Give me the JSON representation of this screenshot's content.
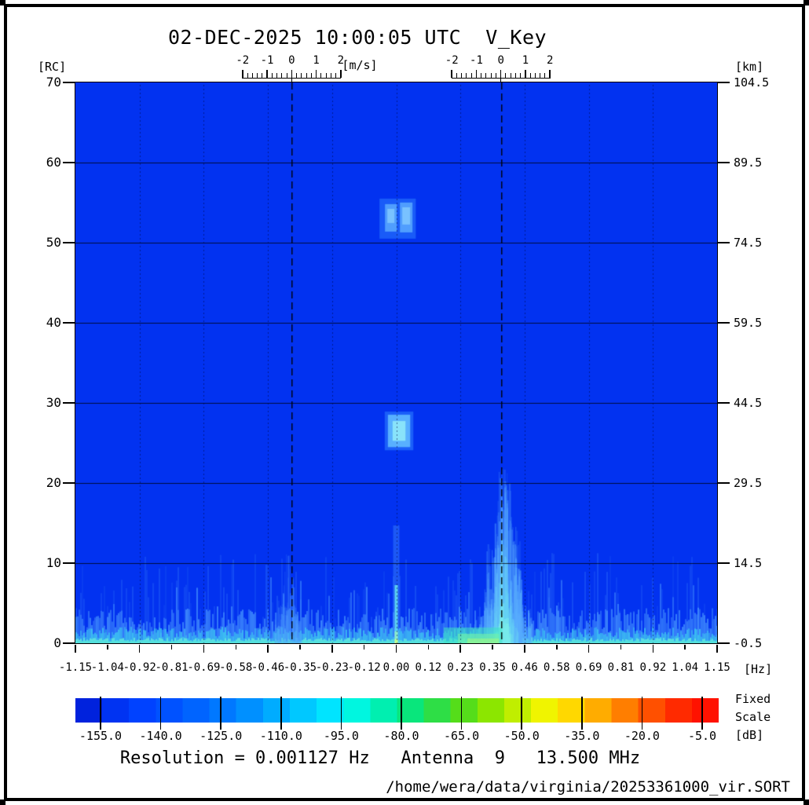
{
  "window": {
    "title": "02-DEC-2025 10:00:05 UTC  V_Key"
  },
  "axes": {
    "left": {
      "unit": "[RC]",
      "tick_labels": [
        "70",
        "60",
        "50",
        "40",
        "30",
        "20",
        "10",
        "0"
      ]
    },
    "right": {
      "unit": "[km]",
      "tick_labels": [
        "104.5",
        "89.5",
        "74.5",
        "59.5",
        "44.5",
        "29.5",
        "14.5",
        "-0.5"
      ]
    },
    "bottom": {
      "unit": "[Hz]",
      "tick_labels": [
        "-1.15",
        "-1.04",
        "-0.92",
        "-0.81",
        "-0.69",
        "-0.58",
        "-0.46",
        "-0.35",
        "-0.23",
        "-0.12",
        "0.00",
        "0.12",
        "0.23",
        "0.35",
        "0.46",
        "0.58",
        "0.69",
        "0.81",
        "0.92",
        "1.04",
        "1.15"
      ]
    },
    "top_velocity": {
      "unit": "[m/s]",
      "tick_labels": [
        "-2",
        "-1",
        "0",
        "1",
        "2"
      ]
    }
  },
  "colorbar": {
    "tick_labels": [
      "-155.0",
      "-140.0",
      "-125.0",
      "-110.0",
      "-95.0",
      "-80.0",
      "-65.0",
      "-50.0",
      "-35.0",
      "-20.0",
      "-5.0"
    ],
    "scale_label_lines": [
      "Fixed",
      "Scale",
      "[dB]"
    ],
    "colors": [
      "#0022dd",
      "#0033f2",
      "#0042ff",
      "#0052ff",
      "#0064ff",
      "#0078ff",
      "#0090ff",
      "#00acff",
      "#00c8ff",
      "#00e4ff",
      "#00f6e0",
      "#00efb0",
      "#09e67c",
      "#2ede46",
      "#55dd1a",
      "#8ce600",
      "#c0ee00",
      "#f0f400",
      "#ffd800",
      "#ffac00",
      "#ff7e00",
      "#ff5000",
      "#ff2a00",
      "#ff1200"
    ]
  },
  "footer": {
    "info_line": "Resolution = 0.001127 Hz   Antenna  9   13.500 MHz",
    "file_path": "/home/wera/data/virginia/20253361000_vir.SORT"
  },
  "chart_data": {
    "type": "heatmap",
    "title": "02-DEC-2025 10:00:05 UTC  V_Key",
    "x_axis": {
      "label": "[Hz]",
      "range": [
        -1.15,
        1.15
      ],
      "tick_step": 0.115
    },
    "y_axis_left": {
      "label": "[RC]",
      "range": [
        0,
        70
      ],
      "tick_step": 10
    },
    "y_axis_right": {
      "label": "[km]",
      "range": [
        -0.5,
        104.5
      ],
      "tick_step": 15
    },
    "velocity_axes": {
      "label": "[m/s]",
      "range": [
        -2,
        2
      ],
      "centers_hz": [
        -0.375,
        0.375
      ]
    },
    "color_scale": {
      "label": "[dB]",
      "mode": "Fixed Scale",
      "ticks": [
        -155,
        -140,
        -125,
        -110,
        -95,
        -80,
        -65,
        -50,
        -35,
        -20,
        -5
      ]
    },
    "background_color": "#0232f0",
    "background_level_db": -155,
    "bragg_lines_hz": [
      -0.375,
      0.375
    ],
    "grid": {
      "horizontal_every_rc": 10,
      "vertical_dotted_every_hz": 0.23
    },
    "features": [
      {
        "name": "noise-floor-band",
        "freq_hz": [
          -1.15,
          1.15
        ],
        "rc": [
          0,
          9
        ],
        "level_db": [
          -150,
          -130
        ]
      },
      {
        "name": "near-range-clutter-band",
        "freq_hz": [
          -1.15,
          1.15
        ],
        "rc": [
          0,
          2
        ],
        "level_db": [
          -130,
          -115
        ]
      },
      {
        "name": "dc-spike",
        "freq_hz": [
          0.0,
          0.0
        ],
        "rc": [
          0,
          8
        ],
        "level_db": [
          -120,
          -85
        ]
      },
      {
        "name": "echo-blob-upper",
        "freq_hz": [
          -0.06,
          0.07
        ],
        "rc": [
          50.5,
          55.5
        ],
        "level_db": [
          -140,
          -130
        ]
      },
      {
        "name": "echo-blob-lower",
        "freq_hz": [
          -0.03,
          0.05
        ],
        "rc": [
          23.5,
          29.5
        ],
        "level_db": [
          -135,
          -122
        ]
      },
      {
        "name": "interference-plume-right",
        "freq_hz": [
          0.29,
          0.48
        ],
        "rc": [
          0,
          23
        ],
        "level_db": [
          -148,
          -125
        ]
      },
      {
        "name": "interference-wisps-left",
        "freq_hz": [
          -0.45,
          -0.33
        ],
        "rc": [
          0,
          12
        ],
        "level_db": [
          -150,
          -140
        ]
      },
      {
        "name": "current-patch-bottom",
        "freq_hz": [
          0.17,
          0.38
        ],
        "rc": [
          0,
          3
        ],
        "level_db": [
          -115,
          -95
        ]
      }
    ]
  }
}
